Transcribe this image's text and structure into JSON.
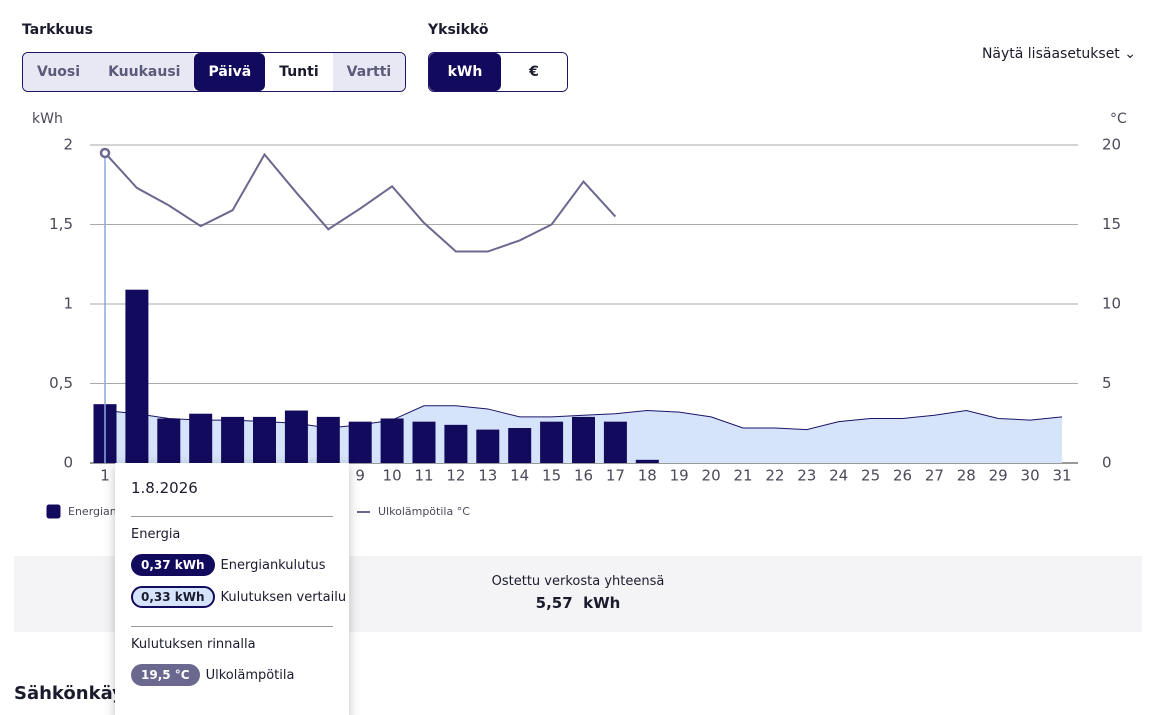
{
  "controls": {
    "precision_label": "Tarkkuus",
    "precision_options": [
      "Vuosi",
      "Kuukausi",
      "Päivä",
      "Tunti",
      "Vartti"
    ],
    "unit_label": "Yksikkö",
    "unit_options": [
      "kWh",
      "€"
    ],
    "more_settings": "Näytä lisäasetukset"
  },
  "chart_data": {
    "type": "bar",
    "y_label": "kWh",
    "y2_label": "°C",
    "categories": [
      "1",
      "2",
      "3",
      "4",
      "5",
      "6",
      "7",
      "8",
      "9",
      "10",
      "11",
      "12",
      "13",
      "14",
      "15",
      "16",
      "17",
      "18",
      "19",
      "20",
      "21",
      "22",
      "23",
      "24",
      "25",
      "26",
      "27",
      "28",
      "29",
      "30",
      "31"
    ],
    "series": [
      {
        "name": "Energiankulutus",
        "type": "bar",
        "color": "#120a5c",
        "values": [
          0.37,
          1.09,
          0.28,
          0.31,
          0.29,
          0.29,
          0.33,
          0.29,
          0.26,
          0.28,
          0.26,
          0.24,
          0.21,
          0.22,
          0.26,
          0.29,
          0.26,
          0.02,
          null,
          null,
          null,
          null,
          null,
          null,
          null,
          null,
          null,
          null,
          null,
          null,
          null
        ]
      },
      {
        "name": "Kulutuksen vertailu",
        "type": "area",
        "color": "#d6e4fb",
        "values": [
          0.33,
          0.31,
          0.28,
          0.27,
          0.27,
          0.26,
          0.25,
          0.22,
          0.24,
          0.27,
          0.36,
          0.36,
          0.34,
          0.29,
          0.29,
          0.3,
          0.31,
          0.33,
          0.32,
          0.29,
          0.22,
          0.22,
          0.21,
          0.26,
          0.28,
          0.28,
          0.3,
          0.33,
          0.28,
          0.27,
          0.29
        ]
      },
      {
        "name": "Ulkolämpötila °C",
        "type": "line",
        "axis": "y2",
        "color": "#6b6890",
        "values": [
          19.5,
          17.3,
          16.2,
          14.9,
          15.9,
          19.4,
          17.0,
          14.7,
          16.0,
          17.4,
          15.1,
          13.3,
          13.3,
          14.0,
          15.0,
          17.7,
          15.5,
          null,
          null,
          null,
          null,
          null,
          null,
          null,
          null,
          null,
          null,
          null,
          null,
          null,
          null
        ]
      }
    ],
    "ylim": [
      0,
      2
    ],
    "yticks": [
      0,
      {
        "value": 0.5,
        "label": "0,5"
      },
      1,
      {
        "value": 1.5,
        "label": "1,5"
      },
      2
    ],
    "y2lim": [
      0,
      20
    ],
    "y2ticks": [
      0,
      5,
      10,
      15,
      20
    ],
    "grid": true
  },
  "tooltip": {
    "date": "1.8.2026",
    "section1": "Energia",
    "items1": [
      {
        "badge": "0,37 kWh",
        "label": "Energiankulutus"
      },
      {
        "badge": "0,33 kWh",
        "label": "Kulutuksen vertailu"
      }
    ],
    "section2": "Kulutuksen rinnalla",
    "items2": [
      {
        "badge": "19,5 °C",
        "label": "Ulkolämpötila"
      }
    ]
  },
  "summary": {
    "label": "Ostettu verkosta yhteensä",
    "value": "5,57  kWh"
  },
  "section_title": "Sähkönkäyttö"
}
